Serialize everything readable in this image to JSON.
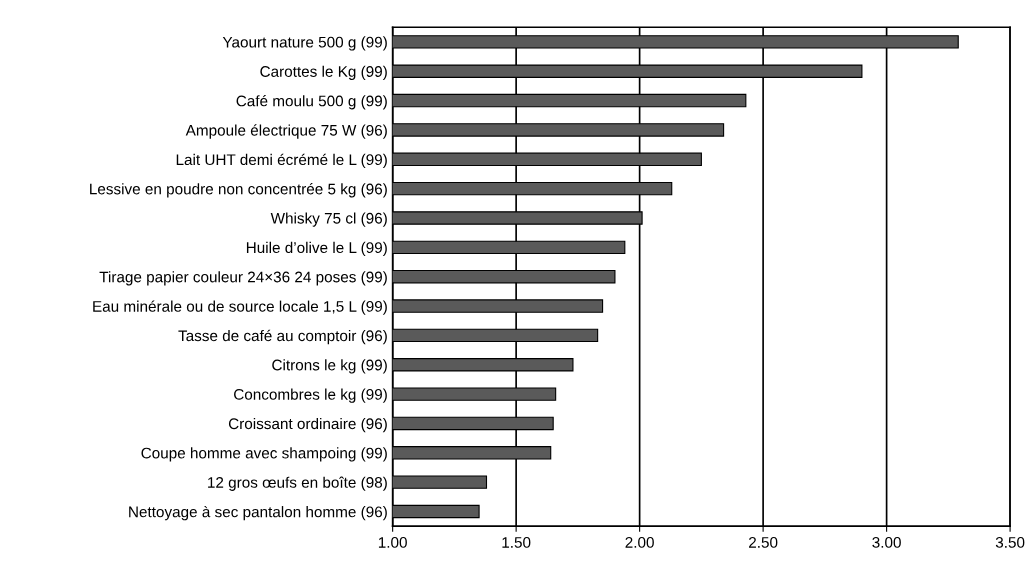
{
  "chart_data": {
    "type": "bar",
    "orientation": "horizontal",
    "categories": [
      "Yaourt nature 500 g (99)",
      "Carottes le Kg (99)",
      "Café moulu 500 g (99)",
      "Ampoule électrique 75 W (96)",
      "Lait UHT demi écrémé le L (99)",
      "Lessive en poudre non concentrée 5 kg (96)",
      "Whisky 75 cl (96)",
      "Huile d’olive le L (99)",
      "Tirage papier couleur 24×36 24 poses (99)",
      "Eau minérale ou de source locale 1,5 L (99)",
      "Tasse de café au comptoir (96)",
      "Citrons le kg (99)",
      "Concombres le kg (99)",
      "Croissant ordinaire (96)",
      "Coupe homme avec shampoing (99)",
      "12 gros œufs en boîte (98)",
      "Nettoyage à sec pantalon homme (96)"
    ],
    "values": [
      3.29,
      2.9,
      2.43,
      2.34,
      2.25,
      2.13,
      2.01,
      1.94,
      1.9,
      1.85,
      1.83,
      1.73,
      1.66,
      1.65,
      1.64,
      1.38,
      1.35
    ],
    "color": "#5a5a5a",
    "xlim": [
      1.0,
      3.5
    ],
    "xticks": [
      {
        "value": 1.0,
        "label": "1.00"
      },
      {
        "value": 1.5,
        "label": "1.50"
      },
      {
        "value": 2.0,
        "label": "2.00"
      },
      {
        "value": 2.5,
        "label": "2.50"
      },
      {
        "value": 3.0,
        "label": "3.00"
      },
      {
        "value": 3.5,
        "label": "3.50"
      }
    ],
    "grid": "x"
  }
}
